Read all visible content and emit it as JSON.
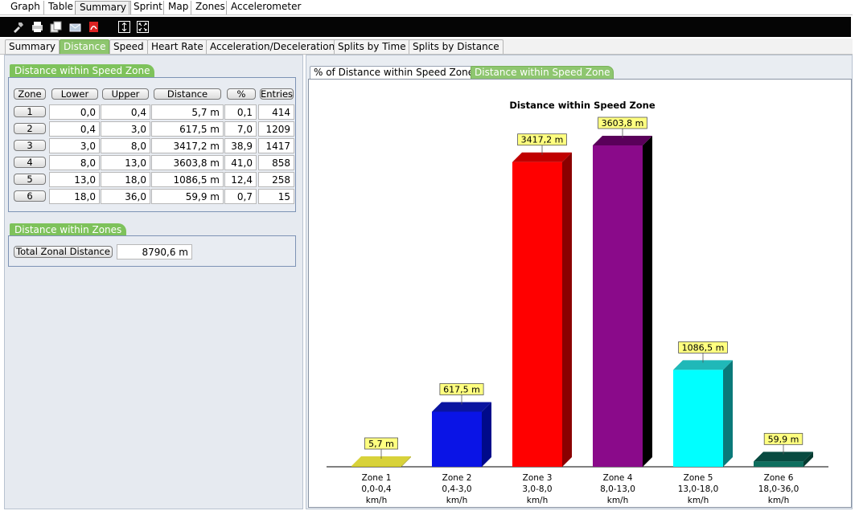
{
  "top_tabs": [
    "Graph",
    "Table",
    "Summary",
    "Sprint",
    "Map",
    "Zones",
    "Accelerometer"
  ],
  "toolbar_icons": [
    "tools-icon",
    "print-icon",
    "copy-icon",
    "email-icon",
    "pdf-icon",
    "fit-height-icon",
    "fullscreen-icon"
  ],
  "sub_tabs": [
    "Summary",
    "Distance",
    "Speed",
    "Heart Rate",
    "Acceleration/Deceleration",
    "Splits by Time",
    "Splits by Distance"
  ],
  "speed_zone_group": {
    "title": "Distance within Speed Zone",
    "headers": [
      "Zone",
      "Lower",
      "Upper",
      "Distance",
      "%",
      "Entries"
    ],
    "rows": [
      {
        "zone": "1",
        "lower": "0,0",
        "upper": "0,4",
        "distance": "5,7 m",
        "pct": "0,1",
        "entries": "414"
      },
      {
        "zone": "2",
        "lower": "0,4",
        "upper": "3,0",
        "distance": "617,5 m",
        "pct": "7,0",
        "entries": "1209"
      },
      {
        "zone": "3",
        "lower": "3,0",
        "upper": "8,0",
        "distance": "3417,2 m",
        "pct": "38,9",
        "entries": "1417"
      },
      {
        "zone": "4",
        "lower": "8,0",
        "upper": "13,0",
        "distance": "3603,8 m",
        "pct": "41,0",
        "entries": "858"
      },
      {
        "zone": "5",
        "lower": "13,0",
        "upper": "18,0",
        "distance": "1086,5 m",
        "pct": "12,4",
        "entries": "258"
      },
      {
        "zone": "6",
        "lower": "18,0",
        "upper": "36,0",
        "distance": "59,9 m",
        "pct": "0,7",
        "entries": "15"
      }
    ]
  },
  "zones_group": {
    "title": "Distance within Zones",
    "total_label": "Total Zonal Distance",
    "total_value": "8790,6 m"
  },
  "chart_tabs": [
    "% of Distance within Speed Zone",
    "Distance within Speed Zone"
  ],
  "chart_data": {
    "type": "bar",
    "title": "Distance within Speed Zone",
    "categories": [
      "Zone 1",
      "Zone 2",
      "Zone 3",
      "Zone 4",
      "Zone 5",
      "Zone 6"
    ],
    "ranges": [
      "0,0-0,4",
      "0,4-3,0",
      "3,0-8,0",
      "8,0-13,0",
      "13,0-18,0",
      "18,0-36,0"
    ],
    "unit": "km/h",
    "values": [
      5.7,
      617.5,
      3417.2,
      3603.8,
      1086.5,
      59.9
    ],
    "value_labels": [
      "5,7 m",
      "617,5 m",
      "3417,2 m",
      "3603,8 m",
      "1086,5 m",
      "59,9 m"
    ],
    "colors": [
      "#c8c21e",
      "#0a14e6",
      "#ff0000",
      "#8a0a8a",
      "#00ffff",
      "#0e6e5e"
    ],
    "side_colors": [
      "#9a9410",
      "#000a8a",
      "#8a0000",
      "#000000",
      "#0a7a7a",
      "#063a30"
    ],
    "top_colors": [
      "#d8d23a",
      "#0a14a0",
      "#c00000",
      "#5a005a",
      "#20b8b8",
      "#084a40"
    ],
    "label_bg": "#ffff80",
    "ylim": [
      0,
      3603.8
    ]
  }
}
